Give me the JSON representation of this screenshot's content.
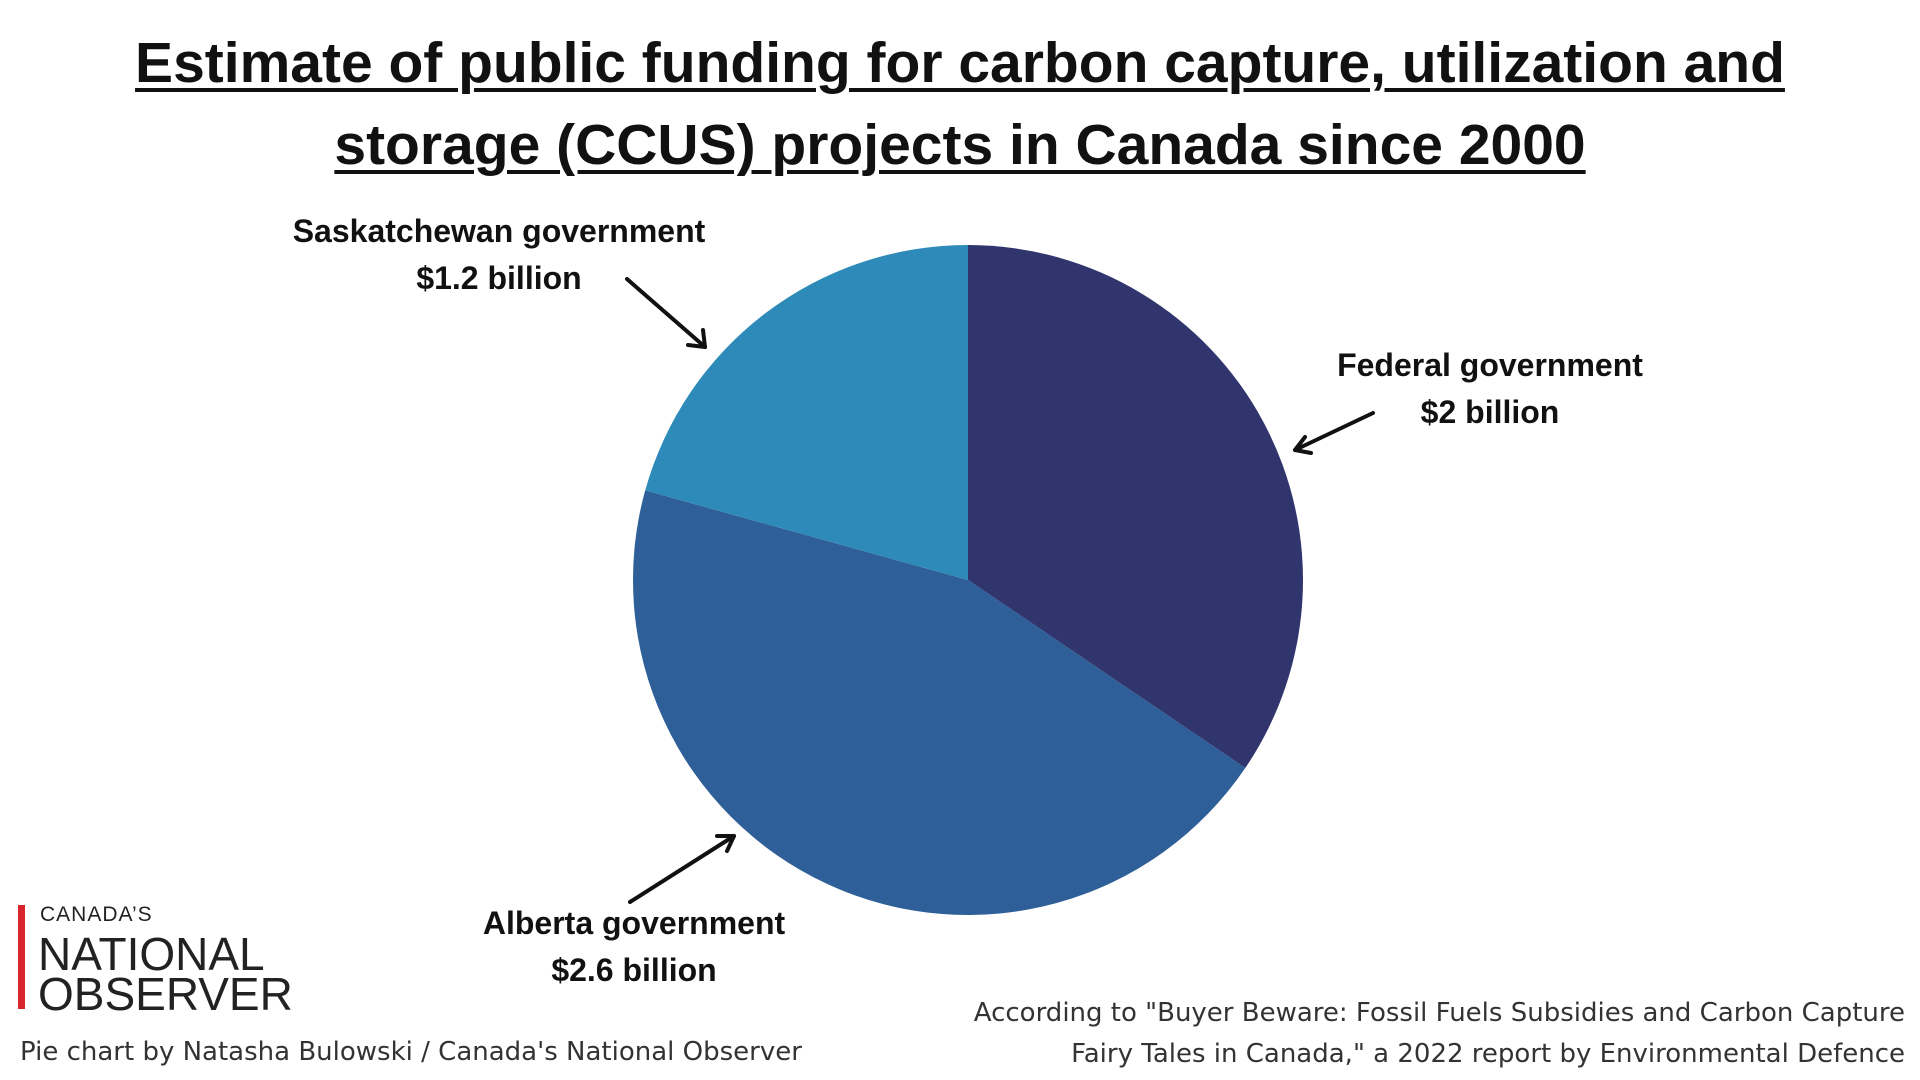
{
  "chart_data": {
    "type": "pie",
    "title": "Estimate of public funding for carbon capture, utilization and storage (CCUS) projects in Canada since 2000",
    "title_lines": [
      "Estimate of public funding for carbon capture, utilization and",
      "storage (CCUS) projects in Canada since 2000"
    ],
    "slices": [
      {
        "label": "Federal government",
        "value": 2.0,
        "value_label": "$2 billion",
        "color": "#31356d"
      },
      {
        "label": "Alberta government",
        "value": 2.6,
        "value_label": "$2.6 billion",
        "color": "#2e5f98"
      },
      {
        "label": "Saskatchewan government",
        "value": 1.2,
        "value_label": "$1.2 billion",
        "color": "#2e8bb9"
      }
    ],
    "start_angle": "12 o'clock",
    "direction": "clockwise",
    "legend": "none"
  },
  "branding": {
    "logo_line1": "CANADA’S",
    "logo_line2": "NATIONAL",
    "logo_line3": "OBSERVER",
    "logo_bar_color": "#d8262f"
  },
  "credit": "Pie chart by Natasha Bulowski / Canada's National Observer",
  "source_lines": [
    "According to \"Buyer Beware: Fossil Fuels Subsidies and Carbon Capture",
    "Fairy Tales in Canada,\" a 2022 report by Environmental Defence"
  ]
}
